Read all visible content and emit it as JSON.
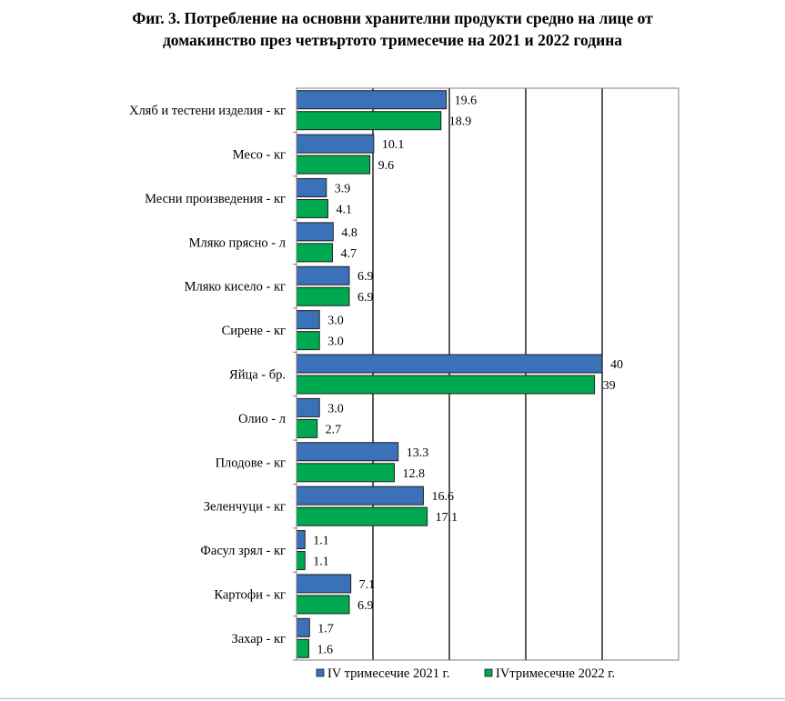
{
  "title": {
    "line1": "Фиг. 3. Потребление на основни хранителни продукти средно на лице от",
    "line2": "домакинство през четвъртото тримесечие на 2021 и 2022 година"
  },
  "colors": {
    "series_2021": "#3a71b8",
    "series_2022": "#00a84f",
    "bar_border": "#1f1f1f",
    "gridline": "#000000",
    "frame": "#7f7f7f"
  },
  "chart_data": {
    "type": "bar",
    "orientation": "horizontal",
    "title": "Фиг. 3. Потребление на основни хранителни продукти средно на лице от домакинство през четвъртото тримесечие на 2021 и 2022 година",
    "xlabel": "",
    "ylabel": "",
    "xlim": [
      0,
      50
    ],
    "gridlines_at": [
      10,
      20,
      30,
      40
    ],
    "categories": [
      "Хляб и тестени изделия - кг",
      "Месо - кг",
      "Месни произведения  - кг",
      "Мляко прясно - л",
      "Мляко кисело - кг",
      "Сирене - кг",
      "Яйца - бр.",
      "Олио - л",
      "Плодове - кг",
      "Зеленчуци - кг",
      "Фасул зрял - кг",
      "Картофи - кг",
      "Захар - кг"
    ],
    "series": [
      {
        "name": "IV тримесечие 2021 г.",
        "values": [
          19.6,
          10.1,
          3.9,
          4.8,
          6.9,
          3.0,
          40,
          3.0,
          13.3,
          16.6,
          1.1,
          7.1,
          1.7
        ],
        "labels": [
          "19.6",
          "10.1",
          "3.9",
          "4.8",
          "6.9",
          "3.0",
          "40",
          "3.0",
          "13.3",
          "16.6",
          "1.1",
          "7.1",
          "1.7"
        ]
      },
      {
        "name": "IVтримесечие 2022 г.",
        "values": [
          18.9,
          9.6,
          4.1,
          4.7,
          6.9,
          3.0,
          39,
          2.7,
          12.8,
          17.1,
          1.1,
          6.9,
          1.6
        ],
        "labels": [
          "18.9",
          "9.6",
          "4.1",
          "4.7",
          "6.9",
          "3.0",
          "39",
          "2.7",
          "12.8",
          "17.1",
          "1.1",
          "6.9",
          "1.6"
        ]
      }
    ],
    "legend_position": "bottom"
  }
}
